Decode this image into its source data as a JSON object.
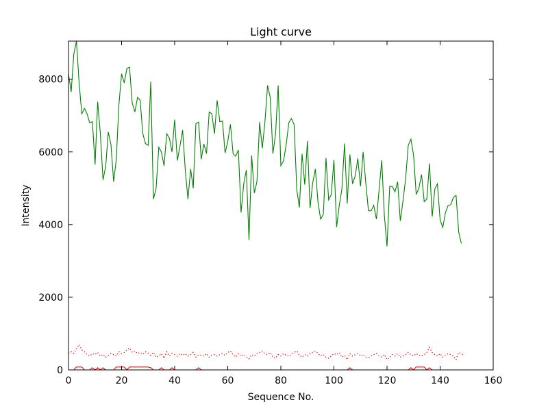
{
  "chart_data": {
    "type": "line",
    "title": "Light curve",
    "xlabel": "Sequence No.",
    "ylabel": "Intensity",
    "xlim": [
      0,
      160
    ],
    "ylim": [
      0,
      9050
    ],
    "x_ticks": [
      0,
      20,
      40,
      60,
      80,
      100,
      120,
      140,
      160
    ],
    "y_ticks": [
      0,
      2000,
      4000,
      6000,
      8000
    ],
    "grid": false,
    "series": [
      {
        "color": "#008000",
        "style": "solid",
        "values": [
          8150,
          7650,
          8700,
          9050,
          7900,
          7050,
          7200,
          7050,
          6800,
          6830,
          5650,
          7380,
          6500,
          5230,
          5600,
          6550,
          6200,
          5180,
          5800,
          7300,
          8150,
          7900,
          8300,
          8330,
          7350,
          7100,
          7500,
          7420,
          6500,
          6230,
          6180,
          7930,
          4700,
          5000,
          6130,
          6000,
          5620,
          6500,
          6380,
          6000,
          6890,
          5760,
          6170,
          6600,
          5500,
          4700,
          5530,
          5000,
          6780,
          6820,
          5800,
          6220,
          5950,
          7100,
          7050,
          6500,
          7420,
          6830,
          6850,
          5970,
          6280,
          6760,
          5950,
          5880,
          6050,
          4330,
          5120,
          5500,
          3580,
          5900,
          4870,
          5180,
          6820,
          6100,
          6830,
          7830,
          7500,
          5950,
          6500,
          7830,
          5620,
          5750,
          6200,
          6800,
          6920,
          6750,
          4950,
          4470,
          5950,
          5100,
          6300,
          4450,
          5150,
          5530,
          4600,
          4150,
          4280,
          5830,
          4680,
          4830,
          5780,
          3930,
          4530,
          4980,
          6230,
          4580,
          5930,
          5120,
          5330,
          5820,
          5050,
          6000,
          5150,
          4380,
          4380,
          4530,
          4150,
          4950,
          5770,
          4250,
          3400,
          5050,
          5050,
          4900,
          5180,
          4100,
          4650,
          5250,
          6180,
          6350,
          5900,
          4830,
          5000,
          5380,
          4630,
          4700,
          5680,
          4220,
          4980,
          5120,
          4130,
          3920,
          4330,
          4520,
          4550,
          4750,
          4800,
          3800,
          3480
        ]
      },
      {
        "color": "#ff0000",
        "style": "dotted",
        "values": [
          450,
          500,
          450,
          580,
          700,
          550,
          500,
          420,
          380,
          450,
          420,
          480,
          380,
          430,
          350,
          400,
          450,
          420,
          380,
          500,
          450,
          480,
          550,
          600,
          480,
          520,
          450,
          480,
          430,
          500,
          450,
          400,
          480,
          350,
          380,
          450,
          320,
          500,
          380,
          450,
          420,
          380,
          450,
          400,
          450,
          380,
          420,
          480,
          350,
          420,
          400,
          380,
          450,
          350,
          400,
          420,
          380,
          420,
          450,
          400,
          480,
          520,
          420,
          350,
          450,
          380,
          420,
          350,
          300,
          420,
          380,
          450,
          480,
          520,
          450,
          420,
          480,
          350,
          320,
          420,
          380,
          450,
          400,
          380,
          420,
          480,
          520,
          400,
          350,
          420,
          380,
          450,
          480,
          520,
          450,
          380,
          420,
          350,
          320,
          380,
          450,
          420,
          480,
          350,
          400,
          280,
          450,
          380,
          420,
          450,
          380,
          420,
          350,
          330,
          380,
          420,
          450,
          380,
          350,
          420,
          280,
          350,
          420,
          380,
          450,
          350,
          380,
          420,
          480,
          420,
          380,
          450,
          400,
          380,
          420,
          480,
          620,
          480,
          420,
          380,
          450,
          350,
          400,
          450,
          420,
          380,
          280,
          480,
          450,
          400
        ]
      },
      {
        "color": "#ff0000",
        "style": "solid",
        "values": [
          0,
          0,
          0,
          80,
          80,
          80,
          0,
          0,
          0,
          60,
          0,
          60,
          0,
          60,
          0,
          0,
          0,
          0,
          80,
          80,
          80,
          80,
          0,
          80,
          80,
          80,
          80,
          80,
          80,
          80,
          80,
          60,
          0,
          0,
          0,
          60,
          0,
          0,
          0,
          60,
          0,
          0,
          0,
          0,
          0,
          0,
          0,
          0,
          0,
          60,
          0,
          0,
          0,
          0,
          0,
          0,
          0,
          0,
          0,
          0,
          0,
          0,
          0,
          0,
          0,
          0,
          0,
          0,
          0,
          0,
          0,
          0,
          0,
          0,
          0,
          0,
          0,
          0,
          0,
          0,
          0,
          0,
          0,
          0,
          0,
          0,
          0,
          0,
          0,
          0,
          0,
          0,
          0,
          0,
          0,
          0,
          0,
          0,
          0,
          0,
          0,
          0,
          0,
          0,
          0,
          0,
          60,
          0,
          0,
          0,
          0,
          0,
          0,
          0,
          0,
          0,
          0,
          0,
          0,
          0,
          0,
          0,
          0,
          0,
          0,
          0,
          0,
          0,
          0,
          60,
          0,
          80,
          80,
          80,
          80,
          0,
          60,
          0,
          0,
          0,
          0,
          0,
          0,
          0,
          0,
          0,
          0,
          0,
          0,
          0
        ]
      }
    ]
  }
}
